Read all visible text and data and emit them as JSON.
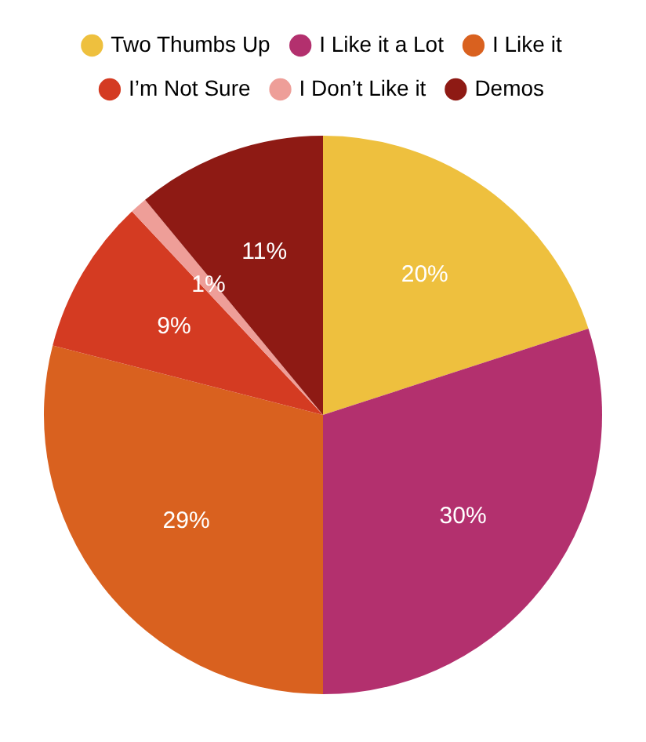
{
  "chart_data": {
    "type": "pie",
    "categories": [
      "Two Thumbs Up",
      "I Like it a Lot",
      "I Like it",
      "I’m Not Sure",
      "I Don’t Like it",
      "Demos"
    ],
    "values": [
      20,
      30,
      29,
      9,
      1,
      11
    ],
    "colors": [
      "#eec03e",
      "#b3306e",
      "#d9611f",
      "#d43b22",
      "#ee9e98",
      "#8e1a14"
    ],
    "value_labels": [
      "20%",
      "30%",
      "29%",
      "9%",
      "1%",
      "11%"
    ],
    "legend": "top"
  }
}
